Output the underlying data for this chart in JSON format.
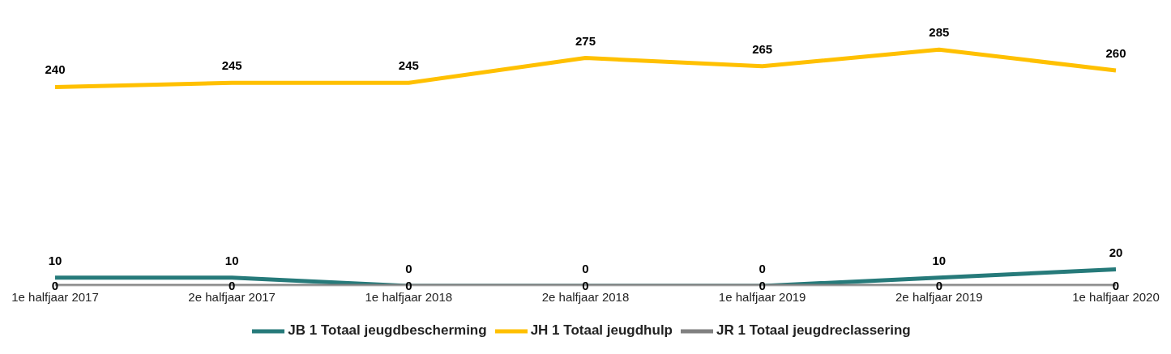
{
  "chart_data": {
    "type": "line",
    "categories": [
      "1e halfjaar 2017",
      "2e halfjaar 2017",
      "1e halfjaar 2018",
      "2e halfjaar 2018",
      "1e halfjaar 2019",
      "2e halfjaar 2019",
      "1e halfjaar 2020"
    ],
    "series": [
      {
        "name": "JH 1 Totaal jeugdhulp",
        "color": "#ffc000",
        "values": [
          240,
          245,
          245,
          275,
          265,
          285,
          260
        ]
      },
      {
        "name": "JB 1 Totaal jeugdbescherming",
        "color": "#267a7a",
        "values": [
          10,
          10,
          0,
          0,
          0,
          10,
          20
        ]
      },
      {
        "name": "JR 1 Totaal jeugdreclassering",
        "color": "#808080",
        "values": [
          0,
          0,
          0,
          0,
          0,
          0,
          0
        ]
      }
    ],
    "data_labels": true,
    "legend": "bottom",
    "grid": false,
    "marker": "none",
    "line_style": "solid"
  }
}
